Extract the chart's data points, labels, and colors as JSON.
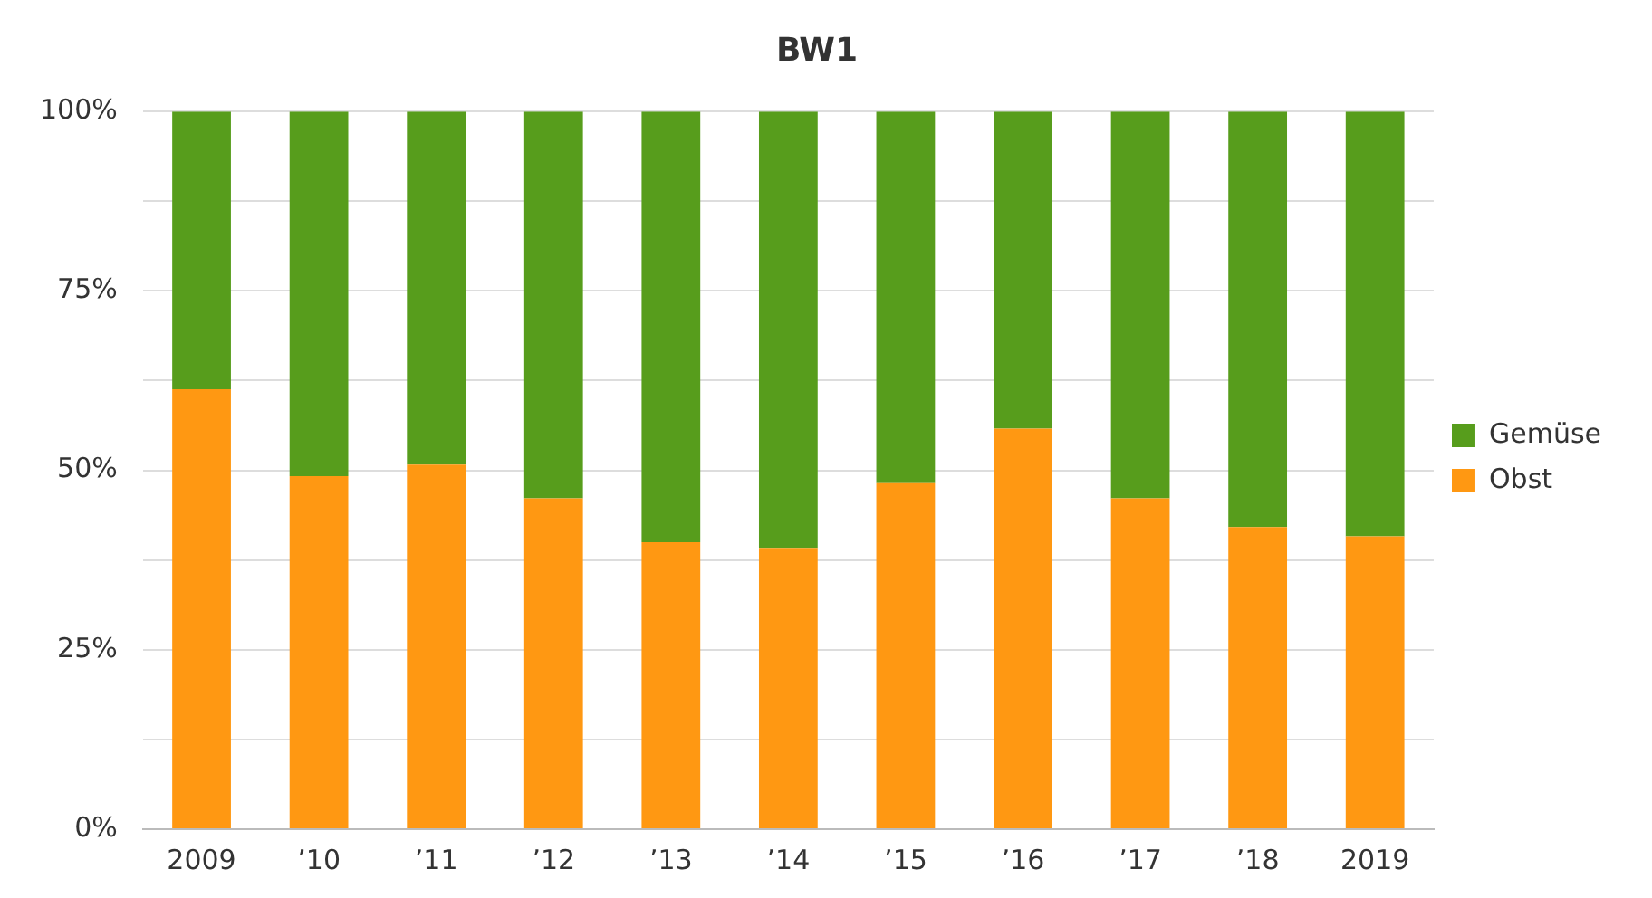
{
  "chart_data": {
    "type": "bar",
    "title": "BW1",
    "stacked": true,
    "categories": [
      "2009",
      "’10",
      "’11",
      "’12",
      "’13",
      "’14",
      "’15",
      "’16",
      "’17",
      "’18",
      "2019"
    ],
    "series": [
      {
        "name": "Obst",
        "color": "#ff9812",
        "values": [
          61.3,
          49.2,
          50.8,
          46.1,
          40,
          39.2,
          48.2,
          55.8,
          46.1,
          42.1,
          40.8
        ]
      },
      {
        "name": "Gemüse",
        "color": "#579d1c",
        "values": [
          38.7,
          50.8,
          49.2,
          53.9,
          60,
          60.8,
          51.8,
          44.2,
          53.9,
          57.9,
          59.2
        ]
      }
    ],
    "ylim": [
      0,
      100
    ],
    "yticks": [
      {
        "value": 0,
        "label": "0%"
      },
      {
        "value": 12.5,
        "label": null
      },
      {
        "value": 25,
        "label": "25%"
      },
      {
        "value": 37.5,
        "label": null
      },
      {
        "value": 50,
        "label": "50%"
      },
      {
        "value": 62.5,
        "label": null
      },
      {
        "value": 75,
        "label": "75%"
      },
      {
        "value": 87.5,
        "label": null
      },
      {
        "value": 100,
        "label": "100%"
      }
    ],
    "grid": "y",
    "legend": "right"
  }
}
